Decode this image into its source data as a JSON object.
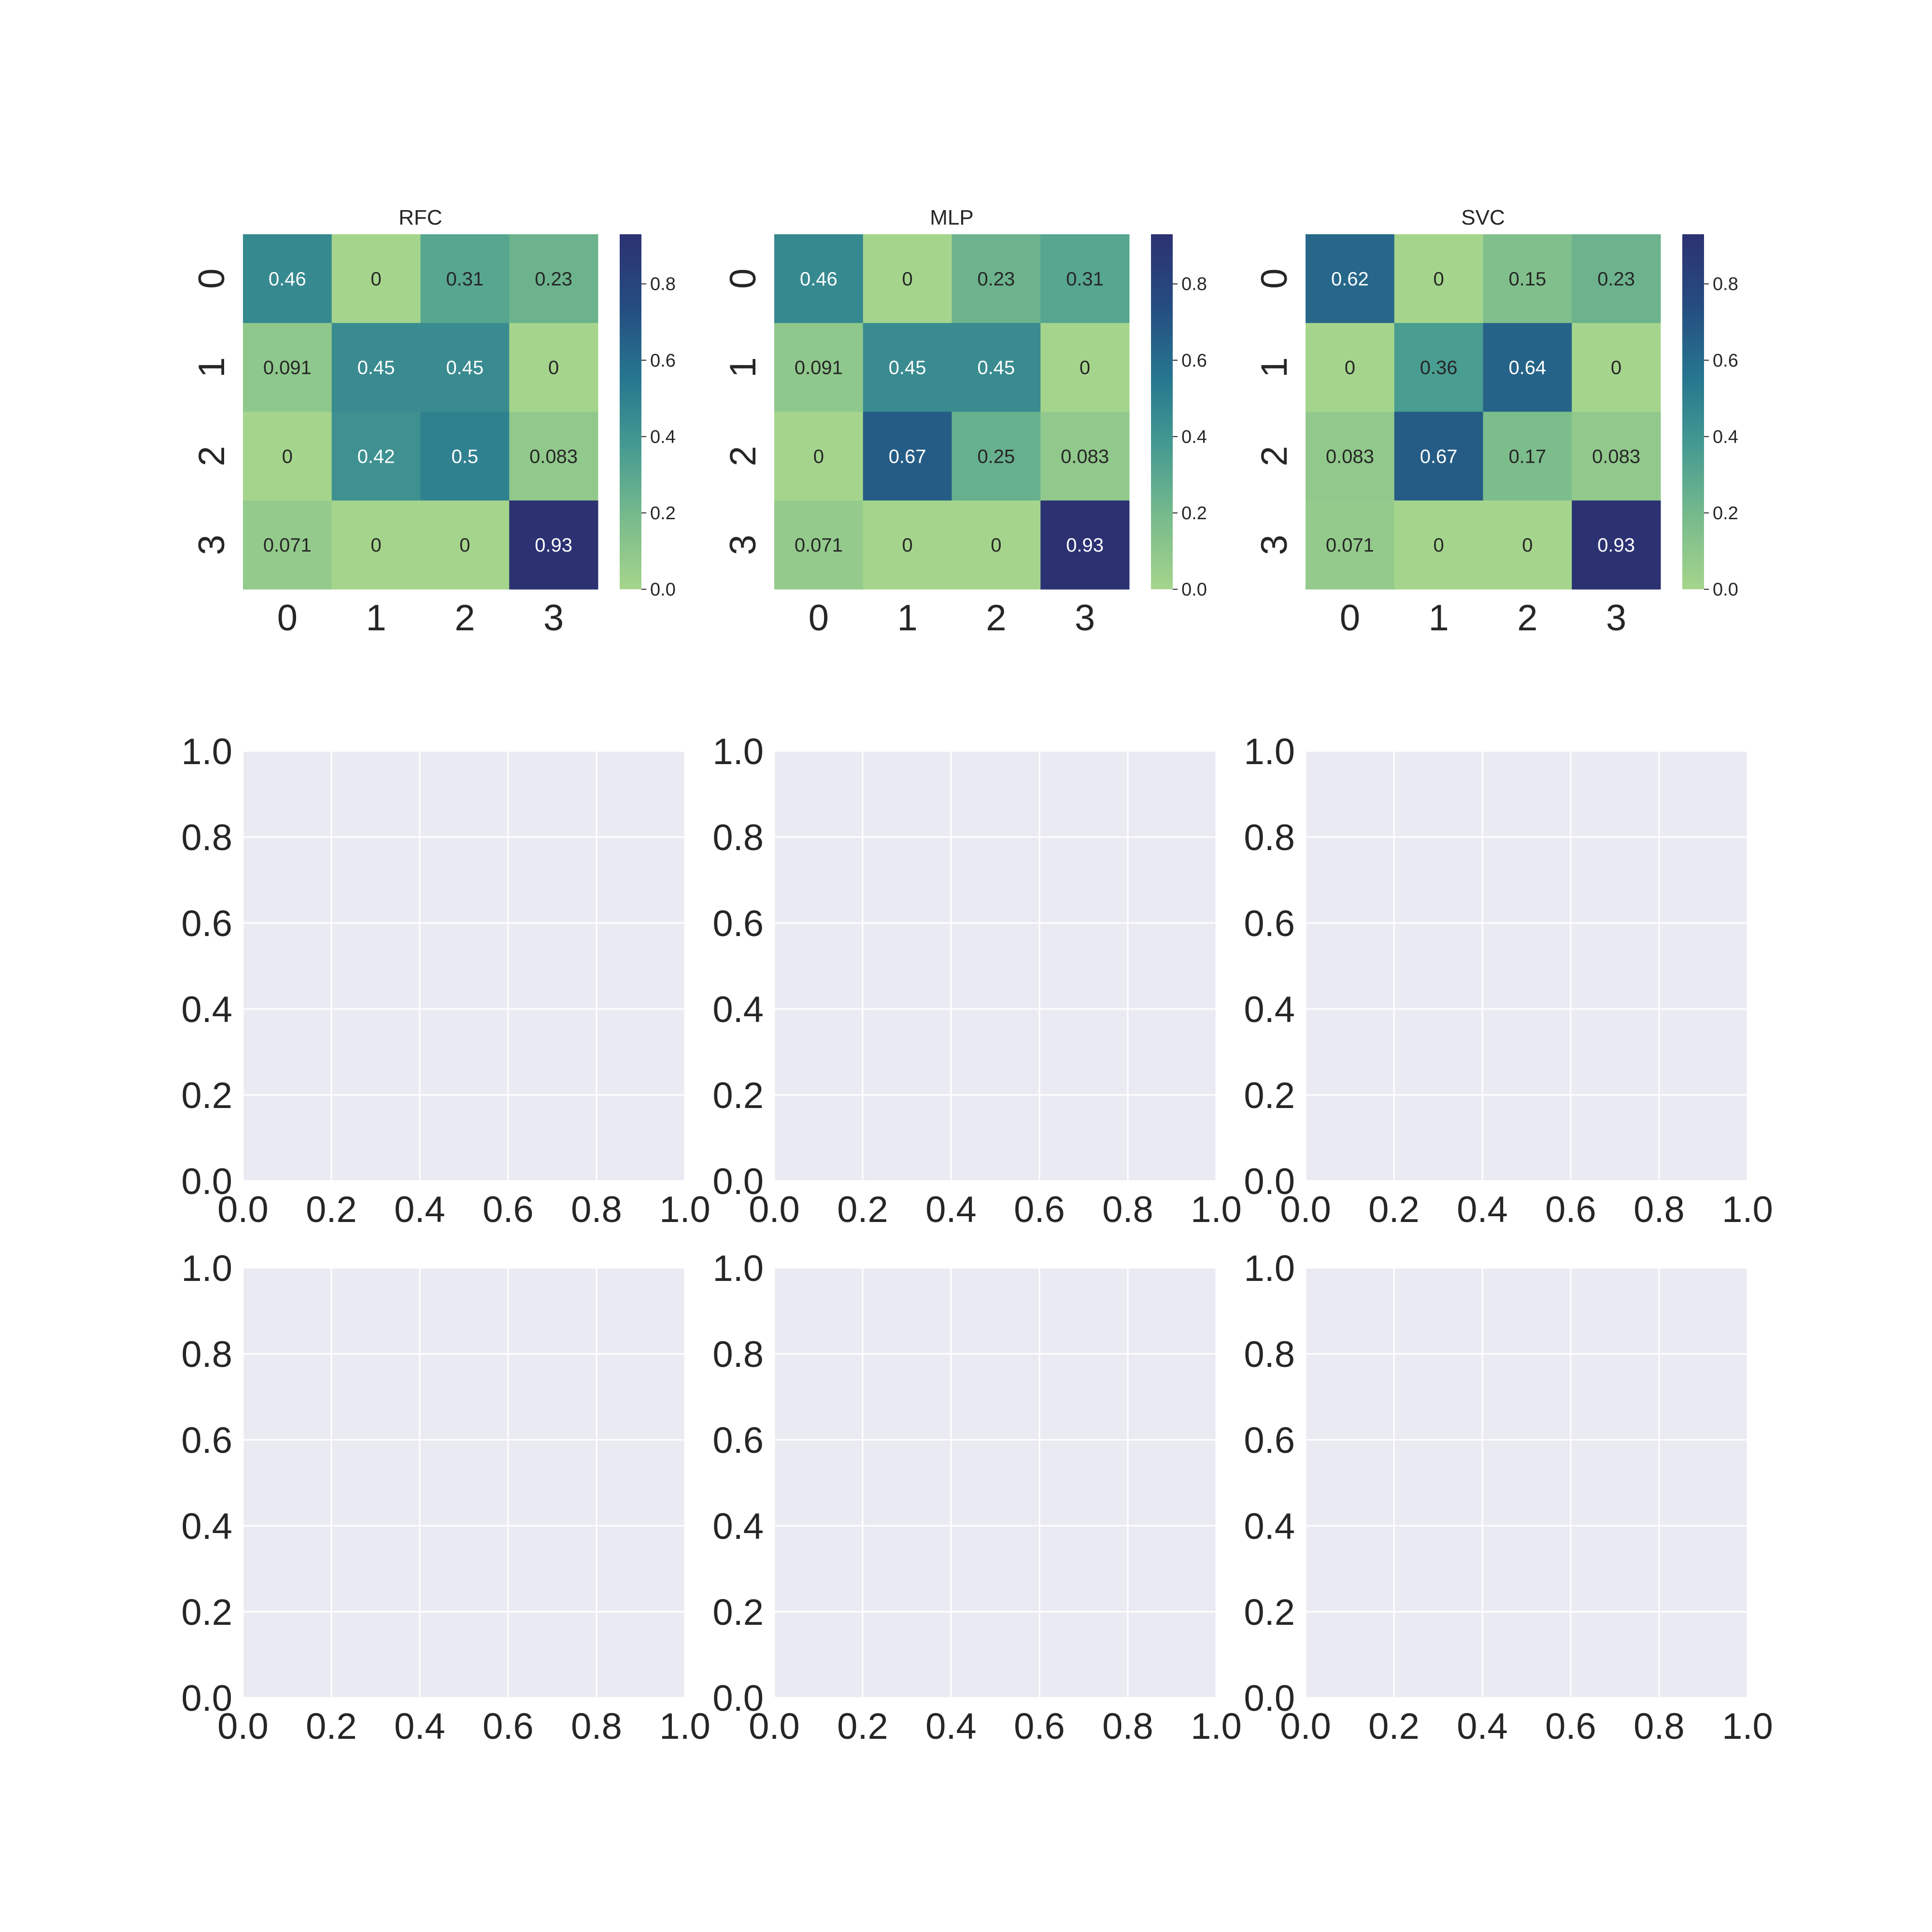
{
  "figure": {
    "colors": {
      "background": "#ffffff",
      "axes_face": "#eaeaf2",
      "grid": "#ffffff",
      "text": "#262626",
      "colormap_low": "#a0d18e",
      "colormap_high": "#2c3172"
    }
  },
  "chart_data": [
    {
      "type": "heatmap",
      "title": "RFC",
      "x_tick_labels": [
        "0",
        "1",
        "2",
        "3"
      ],
      "y_tick_labels": [
        "0",
        "1",
        "2",
        "3"
      ],
      "values": [
        [
          0.46,
          0,
          0.31,
          0.23
        ],
        [
          0.091,
          0.45,
          0.45,
          0
        ],
        [
          0,
          0.42,
          0.5,
          0.083
        ],
        [
          0.071,
          0,
          0,
          0.93
        ]
      ],
      "cell_labels": [
        [
          "0.46",
          "0",
          "0.31",
          "0.23"
        ],
        [
          "0.091",
          "0.45",
          "0.45",
          "0"
        ],
        [
          "0",
          "0.42",
          "0.5",
          "0.083"
        ],
        [
          "0.071",
          "0",
          "0",
          "0.93"
        ]
      ],
      "colorbar": {
        "range": [
          0,
          0.93
        ],
        "ticks": [
          0,
          0.2,
          0.4,
          0.6,
          0.8
        ],
        "tick_labels": [
          "0.0",
          "0.2",
          "0.4",
          "0.6",
          "0.8"
        ]
      }
    },
    {
      "type": "heatmap",
      "title": "MLP",
      "x_tick_labels": [
        "0",
        "1",
        "2",
        "3"
      ],
      "y_tick_labels": [
        "0",
        "1",
        "2",
        "3"
      ],
      "values": [
        [
          0.46,
          0,
          0.23,
          0.31
        ],
        [
          0.091,
          0.45,
          0.45,
          0
        ],
        [
          0,
          0.67,
          0.25,
          0.083
        ],
        [
          0.071,
          0,
          0,
          0.93
        ]
      ],
      "cell_labels": [
        [
          "0.46",
          "0",
          "0.23",
          "0.31"
        ],
        [
          "0.091",
          "0.45",
          "0.45",
          "0"
        ],
        [
          "0",
          "0.67",
          "0.25",
          "0.083"
        ],
        [
          "0.071",
          "0",
          "0",
          "0.93"
        ]
      ],
      "colorbar": {
        "range": [
          0,
          0.93
        ],
        "ticks": [
          0,
          0.2,
          0.4,
          0.6,
          0.8
        ],
        "tick_labels": [
          "0.0",
          "0.2",
          "0.4",
          "0.6",
          "0.8"
        ]
      }
    },
    {
      "type": "heatmap",
      "title": "SVC",
      "x_tick_labels": [
        "0",
        "1",
        "2",
        "3"
      ],
      "y_tick_labels": [
        "0",
        "1",
        "2",
        "3"
      ],
      "values": [
        [
          0.62,
          0,
          0.15,
          0.23
        ],
        [
          0,
          0.36,
          0.64,
          0
        ],
        [
          0.083,
          0.67,
          0.17,
          0.083
        ],
        [
          0.071,
          0,
          0,
          0.93
        ]
      ],
      "cell_labels": [
        [
          "0.62",
          "0",
          "0.15",
          "0.23"
        ],
        [
          "0",
          "0.36",
          "0.64",
          "0"
        ],
        [
          "0.083",
          "0.67",
          "0.17",
          "0.083"
        ],
        [
          "0.071",
          "0",
          "0",
          "0.93"
        ]
      ],
      "colorbar": {
        "range": [
          0,
          0.93
        ],
        "ticks": [
          0,
          0.2,
          0.4,
          0.6,
          0.8
        ],
        "tick_labels": [
          "0.0",
          "0.2",
          "0.4",
          "0.6",
          "0.8"
        ]
      }
    },
    {
      "type": "scatter",
      "series": [],
      "xlim": [
        0,
        1
      ],
      "ylim": [
        0,
        1
      ],
      "x_tick_labels": [
        "0.0",
        "0.2",
        "0.4",
        "0.6",
        "0.8",
        "1.0"
      ],
      "y_tick_labels": [
        "0.0",
        "0.2",
        "0.4",
        "0.6",
        "0.8",
        "1.0"
      ],
      "grid": true
    },
    {
      "type": "scatter",
      "series": [],
      "xlim": [
        0,
        1
      ],
      "ylim": [
        0,
        1
      ],
      "x_tick_labels": [
        "0.0",
        "0.2",
        "0.4",
        "0.6",
        "0.8",
        "1.0"
      ],
      "y_tick_labels": [
        "0.0",
        "0.2",
        "0.4",
        "0.6",
        "0.8",
        "1.0"
      ],
      "grid": true
    },
    {
      "type": "scatter",
      "series": [],
      "xlim": [
        0,
        1
      ],
      "ylim": [
        0,
        1
      ],
      "x_tick_labels": [
        "0.0",
        "0.2",
        "0.4",
        "0.6",
        "0.8",
        "1.0"
      ],
      "y_tick_labels": [
        "0.0",
        "0.2",
        "0.4",
        "0.6",
        "0.8",
        "1.0"
      ],
      "grid": true
    },
    {
      "type": "scatter",
      "series": [],
      "xlim": [
        0,
        1
      ],
      "ylim": [
        0,
        1
      ],
      "x_tick_labels": [
        "0.0",
        "0.2",
        "0.4",
        "0.6",
        "0.8",
        "1.0"
      ],
      "y_tick_labels": [
        "0.0",
        "0.2",
        "0.4",
        "0.6",
        "0.8",
        "1.0"
      ],
      "grid": true
    },
    {
      "type": "scatter",
      "series": [],
      "xlim": [
        0,
        1
      ],
      "ylim": [
        0,
        1
      ],
      "x_tick_labels": [
        "0.0",
        "0.2",
        "0.4",
        "0.6",
        "0.8",
        "1.0"
      ],
      "y_tick_labels": [
        "0.0",
        "0.2",
        "0.4",
        "0.6",
        "0.8",
        "1.0"
      ],
      "grid": true
    },
    {
      "type": "scatter",
      "series": [],
      "xlim": [
        0,
        1
      ],
      "ylim": [
        0,
        1
      ],
      "x_tick_labels": [
        "0.0",
        "0.2",
        "0.4",
        "0.6",
        "0.8",
        "1.0"
      ],
      "y_tick_labels": [
        "0.0",
        "0.2",
        "0.4",
        "0.6",
        "0.8",
        "1.0"
      ],
      "grid": true
    }
  ]
}
